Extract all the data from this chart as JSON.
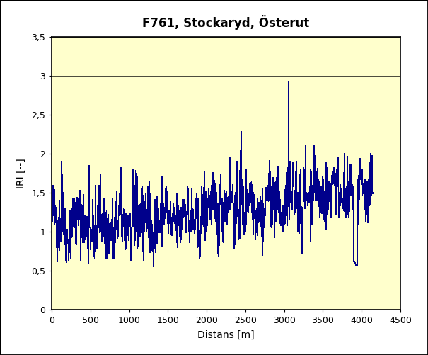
{
  "title": "F761, Stockaryd, Österut",
  "xlabel": "Distans [m]",
  "ylabel": "IRI [--]",
  "xlim": [
    0,
    4500
  ],
  "ylim": [
    0,
    3.5
  ],
  "yticks": [
    0,
    0.5,
    1.0,
    1.5,
    2.0,
    2.5,
    3.0,
    3.5
  ],
  "ytick_labels": [
    "0",
    "0,5",
    "1",
    "1,5",
    "2",
    "2,5",
    "3",
    "3,5"
  ],
  "xticks": [
    0,
    500,
    1000,
    1500,
    2000,
    2500,
    3000,
    3500,
    4000,
    4500
  ],
  "line_color": "#00008B",
  "bg_color": "#FFFFCC",
  "outer_bg": "#FFFFFF",
  "border_color": "#000000",
  "title_fontsize": 12,
  "label_fontsize": 10,
  "tick_fontsize": 9,
  "seed": 42,
  "n_points": 830,
  "x_max": 4150
}
